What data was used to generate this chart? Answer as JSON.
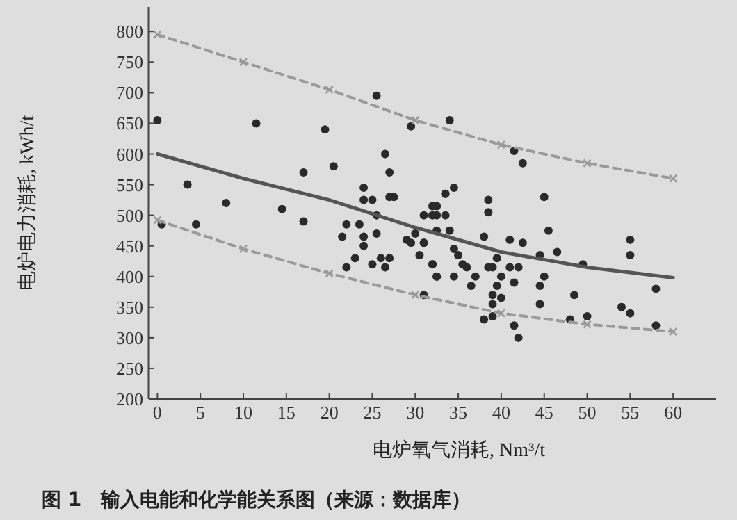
{
  "chart_data": {
    "type": "scatter",
    "xlabel": "电炉氧气消耗, Nm³/t",
    "ylabel": "电炉电力消耗, kWh/t",
    "annotations": [
      "图 1　输入电能和化学能关系图（来源：数据库）"
    ],
    "xlim": [
      -1,
      65
    ],
    "ylim": [
      200,
      840
    ],
    "xticks": [
      0,
      5,
      10,
      15,
      20,
      25,
      30,
      35,
      40,
      45,
      50,
      55,
      60
    ],
    "yticks": [
      200,
      250,
      300,
      350,
      400,
      450,
      500,
      550,
      600,
      650,
      700,
      750,
      800
    ],
    "grid": false,
    "series": [
      {
        "type": "scatter",
        "color": "#2a2a2a",
        "marker": "circle",
        "x": [
          0,
          11.5,
          19.5,
          25.5,
          29.5,
          26.5,
          20.5,
          17,
          3.5,
          27,
          24,
          24,
          25,
          27,
          27.5,
          33.5,
          8,
          14.5,
          17,
          0.5,
          4.5,
          25.5,
          32,
          31,
          32.5,
          22,
          23.5,
          25.5,
          30,
          32.5,
          21.5,
          24,
          29,
          29.5,
          31,
          24,
          30.5,
          27,
          26,
          23,
          22,
          25,
          26.5,
          32,
          32.5,
          31,
          34,
          41.5,
          42.5,
          33.5,
          34.5,
          32.5,
          32,
          33.5,
          34,
          38.5,
          38.5,
          38,
          31,
          34.5,
          35,
          35.5,
          36,
          32,
          32.5,
          34.5,
          36.5,
          37,
          38.5,
          39,
          39.5,
          40,
          39.5,
          39,
          40,
          39,
          38,
          39,
          41,
          42.5,
          41,
          42,
          41.5,
          45,
          45.5,
          44.5,
          46.5,
          45,
          44.5,
          44.5,
          41.5,
          42,
          48.5,
          49.5,
          48,
          50,
          55,
          55,
          54,
          55,
          58,
          58
        ],
        "values": [
          655,
          650,
          640,
          695,
          645,
          600,
          580,
          570,
          550,
          570,
          545,
          525,
          525,
          530,
          530,
          535,
          520,
          510,
          490,
          485,
          485,
          500,
          515,
          500,
          500,
          485,
          485,
          470,
          470,
          475,
          465,
          465,
          460,
          455,
          455,
          450,
          435,
          430,
          430,
          430,
          415,
          420,
          415,
          420,
          400,
          370,
          655,
          605,
          585,
          535,
          545,
          515,
          500,
          500,
          475,
          525,
          505,
          465,
          455,
          445,
          435,
          420,
          415,
          420,
          400,
          400,
          385,
          400,
          415,
          415,
          430,
          400,
          385,
          370,
          365,
          355,
          330,
          335,
          460,
          455,
          415,
          415,
          390,
          530,
          475,
          435,
          440,
          400,
          385,
          355,
          320,
          300,
          370,
          420,
          330,
          335,
          460,
          435,
          350,
          340,
          380,
          320
        ]
      },
      {
        "type": "line",
        "color": "#555555",
        "line_style": "solid",
        "marker": "none",
        "x": [
          0,
          10,
          20,
          30,
          40,
          50,
          60
        ],
        "values": [
          600,
          560,
          525,
          480,
          440,
          415,
          398
        ]
      },
      {
        "type": "line",
        "color": "#9a9a9a",
        "line_style": "dashed",
        "marker": "cross",
        "x": [
          0,
          10,
          20,
          30,
          40,
          50,
          60
        ],
        "values": [
          795,
          750,
          705,
          655,
          615,
          585,
          560
        ]
      },
      {
        "type": "line",
        "color": "#9a9a9a",
        "line_style": "dashed",
        "marker": "cross",
        "x": [
          0,
          10,
          20,
          30,
          40,
          50,
          60
        ],
        "values": [
          492,
          445,
          405,
          370,
          340,
          322,
          310
        ]
      }
    ]
  }
}
